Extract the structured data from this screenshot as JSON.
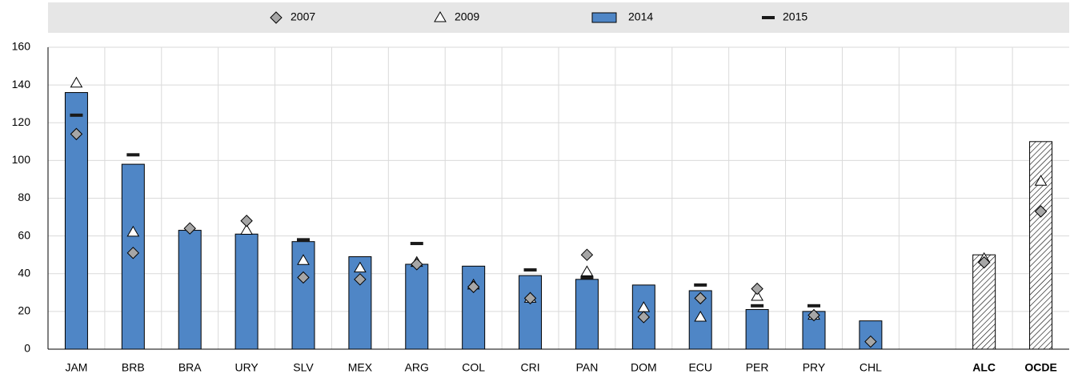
{
  "chart_data": {
    "type": "bar",
    "categories": [
      "JAM",
      "BRB",
      "BRA",
      "URY",
      "SLV",
      "MEX",
      "ARG",
      "COL",
      "CRI",
      "PAN",
      "DOM",
      "ECU",
      "PER",
      "PRY",
      "CHL",
      null,
      "ALC",
      "OCDE"
    ],
    "series": [
      {
        "name": "2007",
        "marker": "diamond",
        "color": "#a6a6a6",
        "values": [
          114,
          51,
          64,
          68,
          38,
          37,
          45,
          33,
          27,
          50,
          17,
          27,
          32,
          18,
          4,
          null,
          46,
          73
        ]
      },
      {
        "name": "2009",
        "marker": "triangle",
        "color": "#ffffff",
        "values": [
          141,
          62,
          null,
          63,
          47,
          43,
          46,
          34,
          27,
          41,
          22,
          17,
          28,
          18,
          null,
          null,
          48,
          89
        ]
      },
      {
        "name": "2014",
        "marker": "bar",
        "color": "#4f86c6",
        "values": [
          136,
          98,
          63,
          61,
          57,
          49,
          45,
          44,
          39,
          37,
          34,
          31,
          21,
          20,
          15,
          null,
          50,
          110
        ]
      },
      {
        "name": "2015",
        "marker": "dash",
        "color": "#1a1a1a",
        "values": [
          124,
          103,
          null,
          null,
          58,
          null,
          56,
          null,
          42,
          38,
          null,
          34,
          23,
          23,
          null,
          null,
          null,
          null
        ]
      }
    ],
    "highlight_categories": [
      "ALC",
      "OCDE"
    ],
    "ylim": [
      0,
      160
    ],
    "yticks": [
      0,
      20,
      40,
      60,
      80,
      100,
      120,
      140,
      160
    ],
    "grid": true
  }
}
